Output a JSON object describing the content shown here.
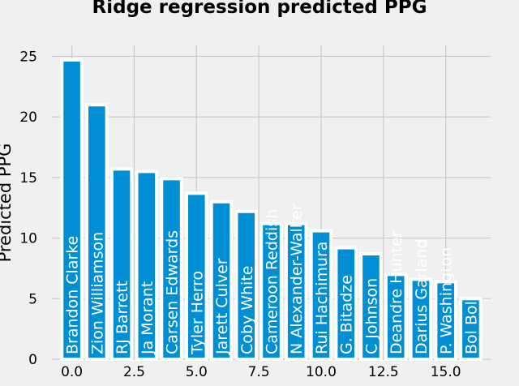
{
  "chart_data": {
    "type": "bar",
    "title": "Ridge regression predicted PPG",
    "xlabel": "",
    "ylabel": "Predicted PPG",
    "xlim": [
      -0.8,
      16.8
    ],
    "ylim": [
      0,
      25.9
    ],
    "x_ticks": [
      0.0,
      2.5,
      5.0,
      7.5,
      10.0,
      12.5,
      15.0
    ],
    "x_tick_labels": [
      "0.0",
      "2.5",
      "5.0",
      "7.5",
      "10.0",
      "12.5",
      "15.0"
    ],
    "y_ticks": [
      0,
      5,
      10,
      15,
      20,
      25
    ],
    "y_tick_labels": [
      "0",
      "5",
      "10",
      "15",
      "20",
      "25"
    ],
    "grid": true,
    "bar_color": "#008fd5",
    "bar_edge_color": "#ffffff",
    "label_color": "#ffffff",
    "background_color": "#f0f0f0",
    "grid_color": "#cbcbcb",
    "bars": [
      {
        "x": 0,
        "label": "Brandon Clarke",
        "value": 24.7
      },
      {
        "x": 1,
        "label": "Zion Williamson",
        "value": 21.0
      },
      {
        "x": 2,
        "label": "RJ Barrett",
        "value": 15.7
      },
      {
        "x": 3,
        "label": "Ja Morant",
        "value": 15.5
      },
      {
        "x": 4,
        "label": "Carsen Edwards",
        "value": 14.9
      },
      {
        "x": 5,
        "label": "Tyler Herro",
        "value": 13.7
      },
      {
        "x": 6,
        "label": "Jarett Culver",
        "value": 13.0
      },
      {
        "x": 7,
        "label": "Coby White",
        "value": 12.2
      },
      {
        "x": 8,
        "label": "Cameroon Reddish",
        "value": 11.2
      },
      {
        "x": 9,
        "label": "N Alexander-Walker",
        "value": 11.2
      },
      {
        "x": 10,
        "label": "Rui Hachimura",
        "value": 10.6
      },
      {
        "x": 11,
        "label": "G. Bitadze",
        "value": 9.2
      },
      {
        "x": 12,
        "label": "C Johnson",
        "value": 8.7
      },
      {
        "x": 13,
        "label": "Deandre Hunter",
        "value": 7.0
      },
      {
        "x": 14,
        "label": "Darius Garland",
        "value": 6.6
      },
      {
        "x": 15,
        "label": "P. Washington",
        "value": 6.4
      },
      {
        "x": 16,
        "label": "Bol Bol",
        "value": 5.0
      }
    ]
  }
}
